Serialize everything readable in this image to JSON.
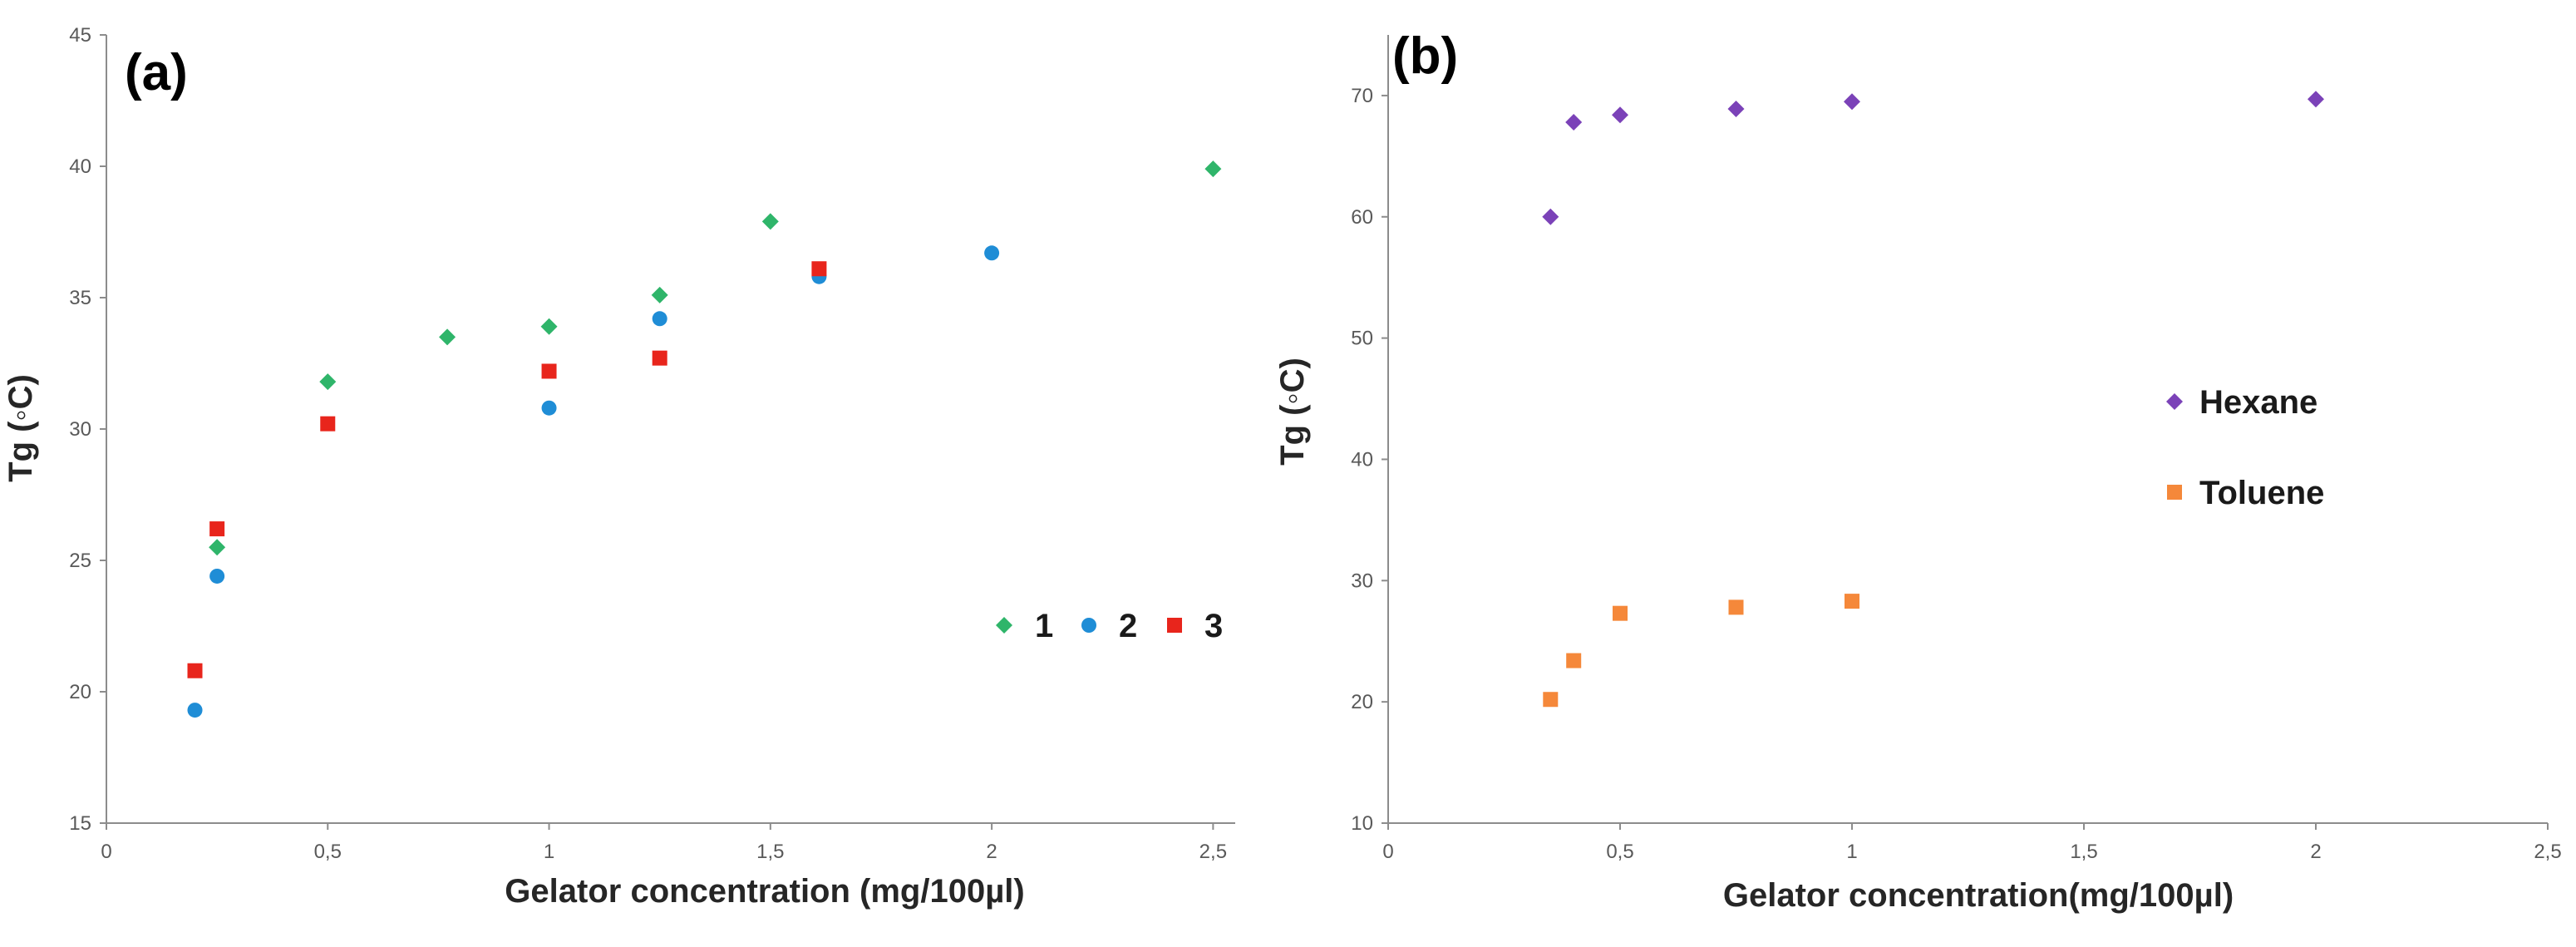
{
  "chart_data": [
    {
      "panel_label": "(a)",
      "type": "scatter",
      "xlabel": "Gelator concentration (mg/100µl)",
      "ylabel": "Tg (◦C)",
      "xlim": [
        0,
        2.55
      ],
      "ylim": [
        15,
        45
      ],
      "x_ticks": [
        0,
        0.5,
        1,
        1.5,
        2,
        2.5
      ],
      "x_tick_labels": [
        "0",
        "0,5",
        "1",
        "1,5",
        "2",
        "2,5"
      ],
      "y_ticks": [
        15,
        20,
        25,
        30,
        35,
        40,
        45
      ],
      "y_tick_labels": [
        "15",
        "20",
        "25",
        "30",
        "35",
        "40",
        "45"
      ],
      "grid": false,
      "legend_position": "lower-right",
      "series": [
        {
          "name": "1",
          "marker": "diamond",
          "color": "#2fb56a",
          "x": [
            0.25,
            0.5,
            0.77,
            1.0,
            1.25,
            1.5,
            2.5
          ],
          "y": [
            25.5,
            31.8,
            33.5,
            33.9,
            35.1,
            37.9,
            39.9
          ]
        },
        {
          "name": "2",
          "marker": "circle",
          "color": "#1f8dd6",
          "x": [
            0.2,
            0.25,
            1.0,
            1.25,
            1.61,
            2.0
          ],
          "y": [
            19.3,
            24.4,
            30.8,
            34.2,
            35.8,
            36.7
          ]
        },
        {
          "name": "3",
          "marker": "square",
          "color": "#e8251c",
          "x": [
            0.2,
            0.25,
            0.5,
            1.0,
            1.25,
            1.61
          ],
          "y": [
            20.8,
            26.2,
            30.2,
            32.2,
            32.7,
            36.1
          ]
        }
      ]
    },
    {
      "panel_label": "(b)",
      "type": "scatter",
      "xlabel": "Gelator concentration(mg/100µl)",
      "ylabel": "Tg (◦C)",
      "xlim": [
        0,
        2.5
      ],
      "ylim": [
        10,
        75
      ],
      "x_ticks": [
        0,
        0.5,
        1,
        1.5,
        2,
        2.5
      ],
      "x_tick_labels": [
        "0",
        "0,5",
        "1",
        "1,5",
        "2",
        "2,5"
      ],
      "y_ticks": [
        10,
        20,
        30,
        40,
        50,
        60,
        70
      ],
      "y_tick_labels": [
        "10",
        "20",
        "30",
        "40",
        "50",
        "60",
        "70"
      ],
      "grid": false,
      "legend_position": "right",
      "series": [
        {
          "name": "Hexane",
          "marker": "diamond",
          "color": "#7b42b8",
          "x": [
            0.35,
            0.4,
            0.5,
            0.75,
            1.0,
            2.0
          ],
          "y": [
            60.0,
            67.8,
            68.4,
            68.9,
            69.5,
            69.7
          ]
        },
        {
          "name": "Toluene",
          "marker": "square",
          "color": "#f5883a",
          "x": [
            0.35,
            0.4,
            0.5,
            0.75,
            1.0
          ],
          "y": [
            20.2,
            23.4,
            27.3,
            27.8,
            28.3
          ]
        }
      ]
    }
  ]
}
